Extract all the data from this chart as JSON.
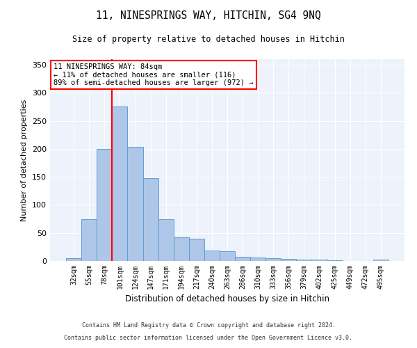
{
  "title1": "11, NINESPRINGS WAY, HITCHIN, SG4 9NQ",
  "title2": "Size of property relative to detached houses in Hitchin",
  "xlabel": "Distribution of detached houses by size in Hitchin",
  "ylabel": "Number of detached properties",
  "categories": [
    "32sqm",
    "55sqm",
    "78sqm",
    "101sqm",
    "124sqm",
    "147sqm",
    "171sqm",
    "194sqm",
    "217sqm",
    "240sqm",
    "263sqm",
    "286sqm",
    "310sqm",
    "333sqm",
    "356sqm",
    "379sqm",
    "402sqm",
    "425sqm",
    "449sqm",
    "472sqm",
    "495sqm"
  ],
  "values": [
    5,
    75,
    200,
    275,
    203,
    148,
    75,
    42,
    40,
    19,
    18,
    7,
    6,
    5,
    4,
    3,
    2,
    1,
    0,
    0,
    2
  ],
  "bar_color": "#aec6e8",
  "bar_edge_color": "#5a9fd4",
  "red_line_x": 2.5,
  "annotation_text": "11 NINESPRINGS WAY: 84sqm\n← 11% of detached houses are smaller (116)\n89% of semi-detached houses are larger (972) →",
  "annotation_box_color": "white",
  "annotation_box_edge_color": "red",
  "red_line_color": "red",
  "background_color": "#eef2fa",
  "grid_color": "white",
  "footer1": "Contains HM Land Registry data © Crown copyright and database right 2024.",
  "footer2": "Contains public sector information licensed under the Open Government Licence v3.0.",
  "ylim": [
    0,
    360
  ],
  "yticks": [
    0,
    50,
    100,
    150,
    200,
    250,
    300,
    350
  ]
}
